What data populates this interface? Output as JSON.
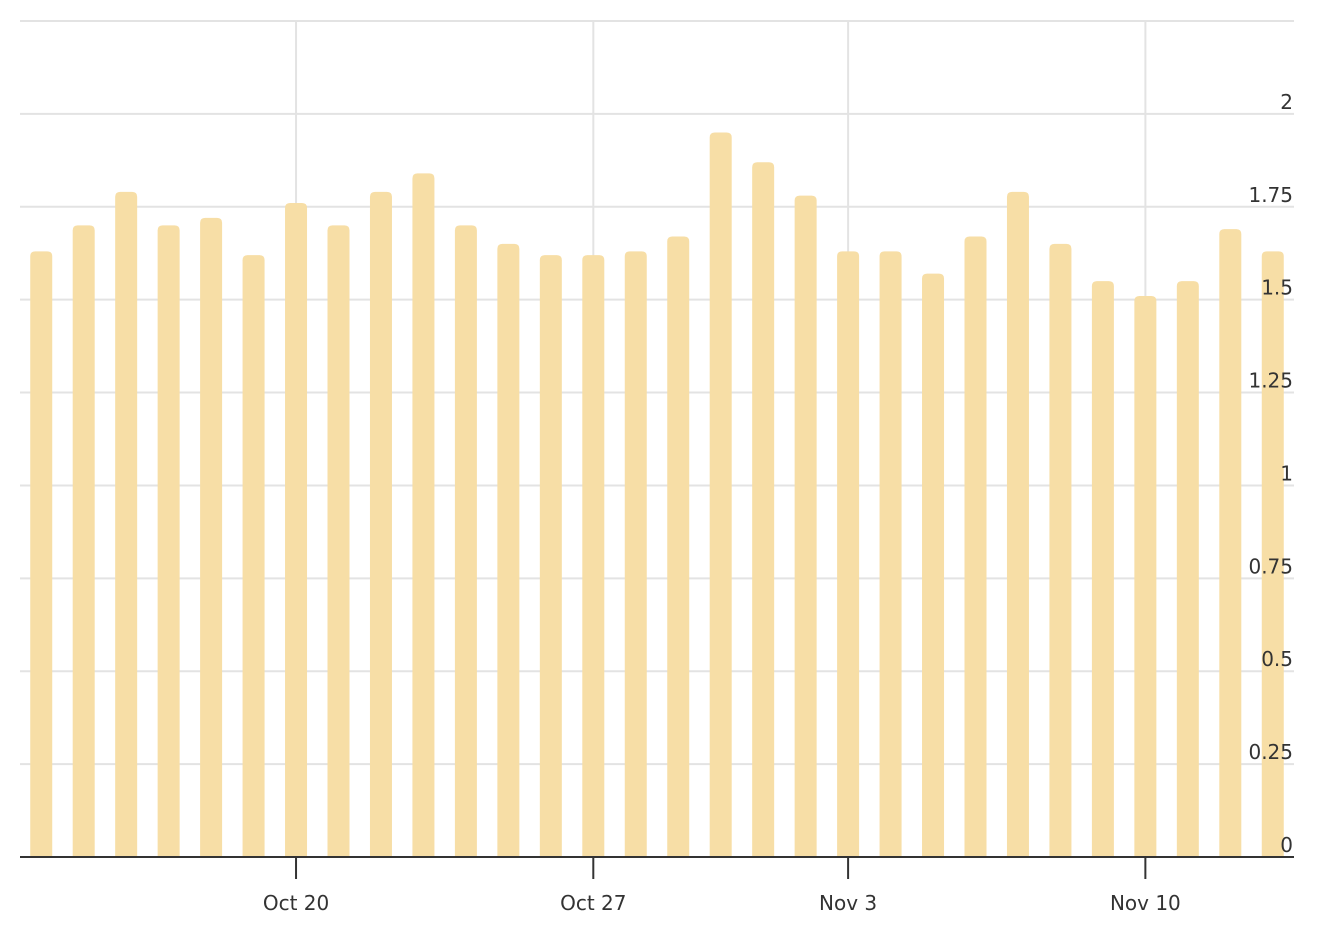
{
  "chart_data": {
    "type": "bar",
    "color": "#f7dea6",
    "categories": [
      null,
      null,
      null,
      null,
      null,
      null,
      "Oct 20",
      null,
      null,
      null,
      null,
      null,
      null,
      "Oct 27",
      null,
      null,
      null,
      null,
      null,
      "Nov 3",
      null,
      null,
      null,
      null,
      null,
      null,
      "Nov 10",
      null,
      null,
      null
    ],
    "values": [
      1.63,
      1.7,
      1.79,
      1.7,
      1.72,
      1.62,
      1.76,
      1.7,
      1.79,
      1.84,
      1.7,
      1.65,
      1.62,
      1.62,
      1.63,
      1.67,
      1.95,
      1.87,
      1.78,
      1.63,
      1.63,
      1.57,
      1.67,
      1.79,
      1.65,
      1.55,
      1.51,
      1.55,
      1.69,
      1.63
    ],
    "ylim": [
      0,
      2.25
    ],
    "yticks": [
      0,
      0.25,
      0.5,
      0.75,
      1,
      1.25,
      1.5,
      1.75,
      2
    ],
    "grid": true
  }
}
